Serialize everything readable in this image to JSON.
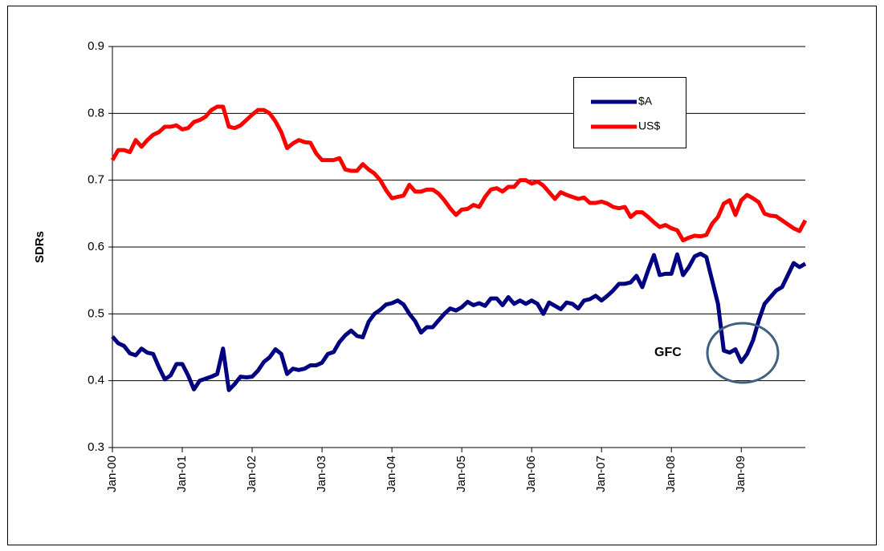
{
  "chart_data": {
    "type": "line",
    "y_label": "SDRs",
    "annotation": "GFC",
    "categories": [
      "Jan-00",
      null,
      null,
      null,
      null,
      null,
      null,
      null,
      null,
      null,
      null,
      null,
      "Jan-01",
      null,
      null,
      null,
      null,
      null,
      null,
      null,
      null,
      null,
      null,
      null,
      "Jan-02",
      null,
      null,
      null,
      null,
      null,
      null,
      null,
      null,
      null,
      null,
      null,
      "Jan-03",
      null,
      null,
      null,
      null,
      null,
      null,
      null,
      null,
      null,
      null,
      null,
      "Jan-04",
      null,
      null,
      null,
      null,
      null,
      null,
      null,
      null,
      null,
      null,
      null,
      "Jan-05",
      null,
      null,
      null,
      null,
      null,
      null,
      null,
      null,
      null,
      null,
      null,
      "Jan-06",
      null,
      null,
      null,
      null,
      null,
      null,
      null,
      null,
      null,
      null,
      null,
      "Jan-07",
      null,
      null,
      null,
      null,
      null,
      null,
      null,
      null,
      null,
      null,
      null,
      "Jan-08",
      null,
      null,
      null,
      null,
      null,
      null,
      null,
      null,
      null,
      null,
      null,
      "Jan-09",
      null,
      null,
      null,
      null,
      null,
      null,
      null,
      null,
      null,
      null,
      null
    ],
    "series": [
      {
        "name": "$A",
        "color": "#000080",
        "values": [
          0.466,
          0.456,
          0.452,
          0.441,
          0.438,
          0.448,
          0.442,
          0.44,
          0.42,
          0.402,
          0.408,
          0.425,
          0.425,
          0.408,
          0.387,
          0.4,
          0.403,
          0.406,
          0.41,
          0.448,
          0.386,
          0.395,
          0.406,
          0.405,
          0.406,
          0.415,
          0.428,
          0.435,
          0.447,
          0.44,
          0.41,
          0.418,
          0.416,
          0.418,
          0.423,
          0.423,
          0.427,
          0.44,
          0.443,
          0.458,
          0.468,
          0.475,
          0.467,
          0.465,
          0.488,
          0.5,
          0.506,
          0.514,
          0.516,
          0.52,
          0.514,
          0.5,
          0.489,
          0.472,
          0.48,
          0.48,
          0.49,
          0.5,
          0.508,
          0.505,
          0.51,
          0.518,
          0.513,
          0.516,
          0.512,
          0.523,
          0.523,
          0.513,
          0.525,
          0.515,
          0.52,
          0.515,
          0.52,
          0.515,
          0.5,
          0.517,
          0.512,
          0.507,
          0.517,
          0.515,
          0.508,
          0.52,
          0.522,
          0.527,
          0.52,
          0.527,
          0.535,
          0.545,
          0.545,
          0.547,
          0.557,
          0.54,
          0.565,
          0.588,
          0.558,
          0.56,
          0.56,
          0.589,
          0.558,
          0.57,
          0.586,
          0.59,
          0.585,
          0.55,
          0.515,
          0.445,
          0.442,
          0.447,
          0.428,
          0.44,
          0.46,
          0.49,
          0.515,
          0.525,
          0.535,
          0.54,
          0.558,
          0.576,
          0.57,
          0.575
        ]
      },
      {
        "name": "US$",
        "color": "#ff0000",
        "values": [
          0.73,
          0.745,
          0.745,
          0.742,
          0.76,
          0.75,
          0.76,
          0.768,
          0.772,
          0.78,
          0.78,
          0.782,
          0.776,
          0.778,
          0.787,
          0.79,
          0.795,
          0.805,
          0.81,
          0.81,
          0.78,
          0.778,
          0.782,
          0.79,
          0.798,
          0.805,
          0.805,
          0.8,
          0.788,
          0.772,
          0.748,
          0.755,
          0.76,
          0.757,
          0.756,
          0.74,
          0.73,
          0.73,
          0.73,
          0.733,
          0.716,
          0.714,
          0.714,
          0.724,
          0.716,
          0.71,
          0.7,
          0.685,
          0.673,
          0.675,
          0.677,
          0.693,
          0.683,
          0.683,
          0.686,
          0.686,
          0.68,
          0.67,
          0.658,
          0.648,
          0.656,
          0.657,
          0.663,
          0.66,
          0.675,
          0.686,
          0.688,
          0.683,
          0.69,
          0.69,
          0.7,
          0.7,
          0.695,
          0.698,
          0.692,
          0.682,
          0.672,
          0.682,
          0.678,
          0.675,
          0.672,
          0.674,
          0.666,
          0.666,
          0.668,
          0.665,
          0.66,
          0.658,
          0.66,
          0.645,
          0.652,
          0.652,
          0.645,
          0.637,
          0.63,
          0.633,
          0.628,
          0.625,
          0.61,
          0.614,
          0.617,
          0.616,
          0.618,
          0.635,
          0.645,
          0.665,
          0.67,
          0.648,
          0.67,
          0.678,
          0.673,
          0.667,
          0.65,
          0.647,
          0.646,
          0.64,
          0.634,
          0.628,
          0.624,
          0.64
        ]
      }
    ],
    "ylim": [
      0.3,
      0.9
    ],
    "yticks": [
      0.3,
      0.4,
      0.5,
      0.6,
      0.7,
      0.8,
      0.9
    ],
    "grid": true,
    "legend": "top-right"
  }
}
